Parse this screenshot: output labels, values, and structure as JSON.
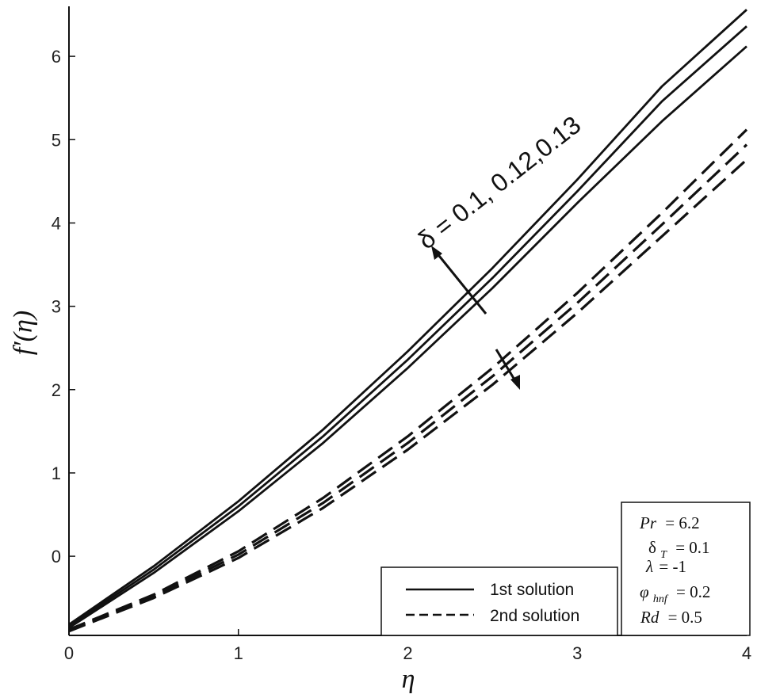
{
  "chart_data": {
    "type": "line",
    "xlabel": "η",
    "ylabel": "f′(η)",
    "xlim": [
      0,
      4
    ],
    "ylim": [
      -0.95,
      6.6
    ],
    "xticks": [
      0,
      1,
      2,
      3,
      4
    ],
    "yticks": [
      0,
      1,
      2,
      3,
      4,
      5,
      6
    ],
    "grid": false,
    "legend_position": "bottom-center",
    "series": [
      {
        "name": "1st solution",
        "group": "first",
        "style": "solid",
        "x": [
          0,
          0.5,
          1,
          1.5,
          2,
          2.5,
          3,
          3.5,
          4
        ],
        "y": [
          -0.82,
          -0.12,
          0.66,
          1.52,
          2.46,
          3.46,
          4.52,
          5.64,
          6.56
        ]
      },
      {
        "group": "first",
        "style": "solid",
        "x": [
          0,
          0.5,
          1,
          1.5,
          2,
          2.5,
          3,
          3.5,
          4
        ],
        "y": [
          -0.84,
          -0.16,
          0.6,
          1.44,
          2.36,
          3.34,
          4.38,
          5.46,
          6.36
        ]
      },
      {
        "group": "first",
        "style": "solid",
        "x": [
          0,
          0.5,
          1,
          1.5,
          2,
          2.5,
          3,
          3.5,
          4
        ],
        "y": [
          -0.86,
          -0.2,
          0.54,
          1.36,
          2.26,
          3.22,
          4.24,
          5.22,
          6.12
        ]
      },
      {
        "name": "2nd solution",
        "group": "second",
        "style": "dashed",
        "x": [
          0,
          0.5,
          1,
          1.5,
          2,
          2.5,
          3,
          3.5,
          4
        ],
        "y": [
          -0.88,
          -0.46,
          0.06,
          0.7,
          1.44,
          2.26,
          3.16,
          4.12,
          5.12
        ]
      },
      {
        "group": "second",
        "style": "dashed",
        "x": [
          0,
          0.5,
          1,
          1.5,
          2,
          2.5,
          3,
          3.5,
          4
        ],
        "y": [
          -0.89,
          -0.48,
          0.02,
          0.64,
          1.36,
          2.16,
          3.04,
          3.98,
          4.94
        ]
      },
      {
        "group": "second",
        "style": "dashed",
        "x": [
          0,
          0.5,
          1,
          1.5,
          2,
          2.5,
          3,
          3.5,
          4
        ],
        "y": [
          -0.9,
          -0.5,
          -0.02,
          0.58,
          1.28,
          2.06,
          2.92,
          3.84,
          4.76
        ]
      }
    ],
    "annotations": [
      {
        "text": "δ = 0.1, 0.12,0.13",
        "direction": "increasing, arrow on 1st solution curves"
      },
      {
        "text": "",
        "direction": "decreasing, arrow on 2nd solution curves"
      }
    ],
    "parameters": {
      "pr": {
        "symbol": "Pr",
        "value": "= 6.2"
      },
      "deltaT": {
        "symbol": "δ",
        "sub": "T",
        "value": "= 0.1"
      },
      "lambda": {
        "symbol": "λ",
        "value": "= -1"
      },
      "phi": {
        "symbol": "φ",
        "sub": "hnf",
        "value": "= 0.2"
      },
      "rd": {
        "symbol": "Rd",
        "value": "= 0.5"
      }
    }
  }
}
